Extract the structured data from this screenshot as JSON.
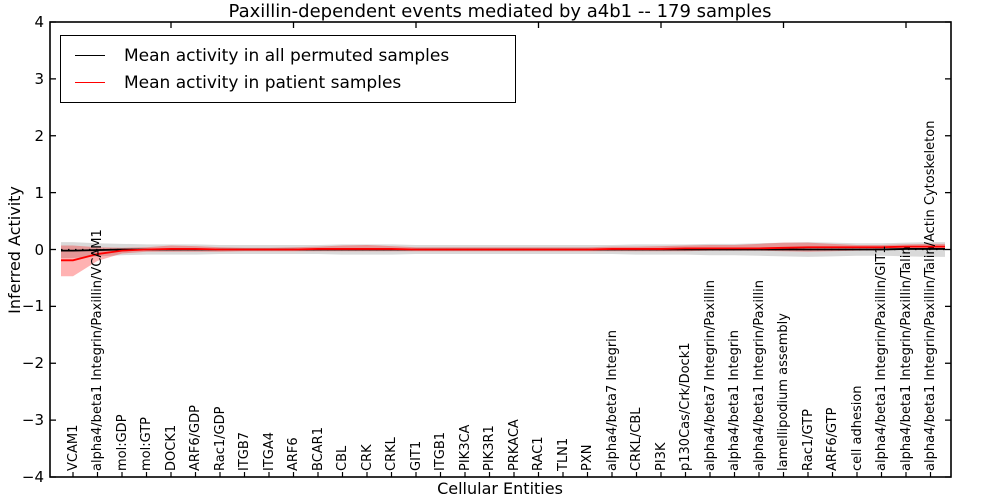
{
  "chart_data": {
    "type": "line",
    "title": "Paxillin-dependent events mediated by a4b1 -- 179 samples",
    "xlabel": "Cellular Entities",
    "ylabel": "Inferred Activity",
    "ylim": [
      -4,
      4
    ],
    "yticks": [
      4,
      3,
      2,
      1,
      0,
      -1,
      -2,
      -3,
      -4
    ],
    "grid": false,
    "legend_position": "upper left",
    "zero_line": {
      "style": "dotted",
      "color": "#000000",
      "y": 0
    },
    "categories": [
      "VCAM1",
      "alpha4/beta1 Integrin/Paxillin/VCAM1",
      "mol:GDP",
      "mol:GTP",
      "DOCK1",
      "ARF6/GDP",
      "Rac1/GDP",
      "ITGB7",
      "ITGA4",
      "ARF6",
      "BCAR1",
      "CBL",
      "CRK",
      "CRKL",
      "GIT1",
      "ITGB1",
      "PIK3CA",
      "PIK3R1",
      "PRKACA",
      "RAC1",
      "TLN1",
      "PXN",
      "alpha4/beta7 Integrin",
      "CRKL/CBL",
      "PI3K",
      "p130Cas/Crk/Dock1",
      "alpha4/beta7 Integrin/Paxillin",
      "alpha4/beta1 Integrin",
      "alpha4/beta1 Integrin/Paxillin",
      "lamellipodium assembly",
      "Rac1/GTP",
      "ARF6/GTP",
      "cell adhesion",
      "alpha4/beta1 Integrin/Paxillin/GIT1",
      "alpha4/beta1 Integrin/Paxillin/Talin",
      "alpha4/beta1 Integrin/Paxillin/Talin/Actin Cytoskeleton"
    ],
    "series": [
      {
        "name": "Mean activity in all permuted samples",
        "color": "#000000",
        "band_color": "rgba(0,0,0,0.15)",
        "values": [
          -0.02,
          -0.01,
          0,
          0,
          0,
          0,
          0,
          0,
          0,
          0,
          0,
          0,
          0,
          0,
          0,
          0,
          0,
          0,
          0,
          0,
          0,
          0,
          0,
          0,
          0,
          0,
          0,
          0,
          0,
          0,
          0,
          0,
          0,
          0,
          0.01,
          0.01
        ],
        "band_upper": [
          0.13,
          0.11,
          0.1,
          0.09,
          0.09,
          0.09,
          0.08,
          0.08,
          0.08,
          0.08,
          0.08,
          0.09,
          0.09,
          0.09,
          0.08,
          0.08,
          0.08,
          0.08,
          0.08,
          0.08,
          0.08,
          0.08,
          0.08,
          0.09,
          0.09,
          0.09,
          0.1,
          0.1,
          0.11,
          0.12,
          0.13,
          0.12,
          0.11,
          0.11,
          0.12,
          0.13
        ],
        "band_lower": [
          -0.15,
          -0.12,
          -0.1,
          -0.09,
          -0.09,
          -0.09,
          -0.08,
          -0.08,
          -0.08,
          -0.08,
          -0.08,
          -0.09,
          -0.09,
          -0.09,
          -0.08,
          -0.08,
          -0.08,
          -0.08,
          -0.08,
          -0.08,
          -0.08,
          -0.08,
          -0.08,
          -0.09,
          -0.09,
          -0.09,
          -0.1,
          -0.1,
          -0.11,
          -0.12,
          -0.13,
          -0.12,
          -0.11,
          -0.11,
          -0.12,
          -0.13
        ]
      },
      {
        "name": "Mean activity in patient samples",
        "color": "#ff0000",
        "band_color": "rgba(255,0,0,0.3)",
        "values": [
          -0.19,
          -0.08,
          -0.02,
          0,
          0.01,
          0.01,
          0,
          0,
          0,
          0,
          0.01,
          0.01,
          0.01,
          0.01,
          0,
          0,
          0,
          0,
          0,
          0,
          0,
          0,
          0.01,
          0.01,
          0.01,
          0.02,
          0.02,
          0.02,
          0.02,
          0.03,
          0.04,
          0.04,
          0.04,
          0.04,
          0.05,
          0.05
        ],
        "band_upper": [
          0.07,
          0.04,
          0.03,
          0.04,
          0.07,
          0.06,
          0.04,
          0.03,
          0.03,
          0.04,
          0.05,
          0.07,
          0.08,
          0.06,
          0.04,
          0.04,
          0.04,
          0.04,
          0.04,
          0.04,
          0.04,
          0.04,
          0.05,
          0.05,
          0.06,
          0.07,
          0.08,
          0.08,
          0.1,
          0.12,
          0.12,
          0.1,
          0.08,
          0.08,
          0.09,
          0.1
        ],
        "band_lower": [
          -0.47,
          -0.2,
          -0.07,
          -0.04,
          -0.04,
          -0.04,
          -0.04,
          -0.03,
          -0.03,
          -0.03,
          -0.03,
          -0.03,
          -0.03,
          -0.03,
          -0.03,
          -0.03,
          -0.03,
          -0.03,
          -0.03,
          -0.03,
          -0.03,
          -0.03,
          -0.03,
          -0.03,
          -0.03,
          -0.03,
          -0.02,
          -0.02,
          -0.02,
          -0.03,
          -0.04,
          -0.03,
          -0.02,
          -0.01,
          0,
          0
        ]
      }
    ]
  }
}
